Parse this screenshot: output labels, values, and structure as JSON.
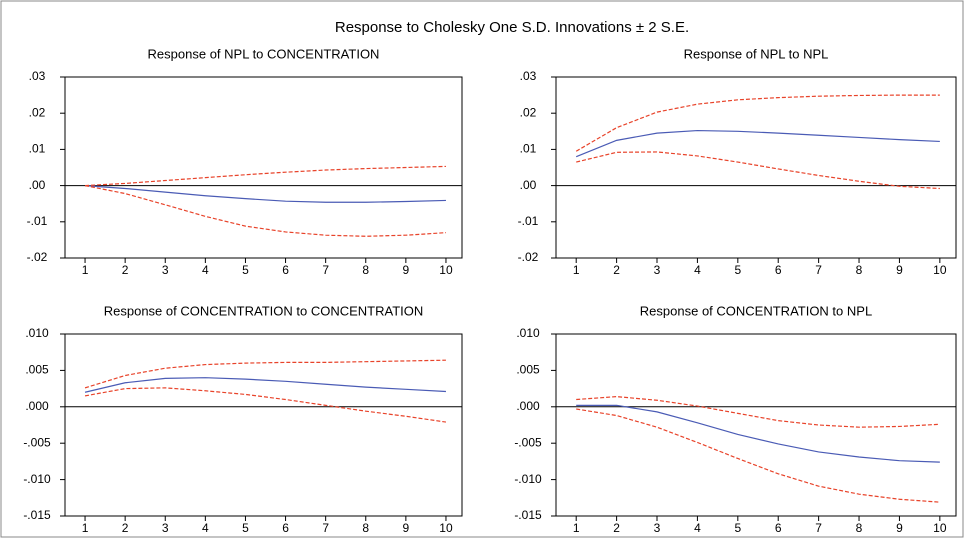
{
  "title": "Response to Cholesky One S.D. Innovations ± 2 S.E.",
  "chart_data": [
    {
      "type": "line",
      "title": "Response of NPL to CONCENTRATION",
      "x": [
        1,
        2,
        3,
        4,
        5,
        6,
        7,
        8,
        9,
        10
      ],
      "xlim": [
        0.5,
        10.4
      ],
      "xticks": [
        1,
        2,
        3,
        4,
        5,
        6,
        7,
        8,
        9,
        10
      ],
      "ylim": [
        -0.02,
        0.03
      ],
      "yticks": [
        {
          "value": -0.02,
          "label": "-.02"
        },
        {
          "value": -0.01,
          "label": "-.01"
        },
        {
          "value": 0,
          "label": ".00"
        },
        {
          "value": 0.01,
          "label": ".01"
        },
        {
          "value": 0.02,
          "label": ".02"
        },
        {
          "value": 0.03,
          "label": ".03"
        }
      ],
      "series": [
        {
          "color": "#4a5bb5",
          "dashed": false,
          "values": [
            0,
            -0.0008,
            -0.0018,
            -0.0028,
            -0.0036,
            -0.0043,
            -0.0046,
            -0.0046,
            -0.0044,
            -0.0041
          ]
        },
        {
          "color": "#e8432a",
          "dashed": true,
          "values": [
            0,
            0.0006,
            0.0014,
            0.0022,
            0.003,
            0.0037,
            0.0043,
            0.0047,
            0.005,
            0.0053
          ]
        },
        {
          "color": "#e8432a",
          "dashed": true,
          "values": [
            0,
            -0.0022,
            -0.0053,
            -0.0085,
            -0.0112,
            -0.0128,
            -0.0137,
            -0.014,
            -0.0137,
            -0.013
          ]
        }
      ]
    },
    {
      "type": "line",
      "title": "Response of NPL to NPL",
      "x": [
        1,
        2,
        3,
        4,
        5,
        6,
        7,
        8,
        9,
        10
      ],
      "xlim": [
        0.5,
        10.4
      ],
      "xticks": [
        1,
        2,
        3,
        4,
        5,
        6,
        7,
        8,
        9,
        10
      ],
      "ylim": [
        -0.02,
        0.03
      ],
      "yticks": [
        {
          "value": -0.02,
          "label": "-.02"
        },
        {
          "value": -0.01,
          "label": "-.01"
        },
        {
          "value": 0,
          "label": ".00"
        },
        {
          "value": 0.01,
          "label": ".01"
        },
        {
          "value": 0.02,
          "label": ".02"
        },
        {
          "value": 0.03,
          "label": ".03"
        }
      ],
      "series": [
        {
          "color": "#4a5bb5",
          "dashed": false,
          "values": [
            0.008,
            0.0125,
            0.0145,
            0.0152,
            0.015,
            0.0145,
            0.0139,
            0.0133,
            0.0127,
            0.0122
          ]
        },
        {
          "color": "#e8432a",
          "dashed": true,
          "values": [
            0.0095,
            0.016,
            0.0203,
            0.0225,
            0.0237,
            0.0243,
            0.0247,
            0.0249,
            0.025,
            0.025
          ]
        },
        {
          "color": "#e8432a",
          "dashed": true,
          "values": [
            0.0065,
            0.0092,
            0.0093,
            0.0082,
            0.0065,
            0.0046,
            0.0028,
            0.0012,
            -0.0002,
            -0.0008
          ]
        }
      ]
    },
    {
      "type": "line",
      "title": "Response of CONCENTRATION to CONCENTRATION",
      "x": [
        1,
        2,
        3,
        4,
        5,
        6,
        7,
        8,
        9,
        10
      ],
      "xlim": [
        0.5,
        10.4
      ],
      "xticks": [
        1,
        2,
        3,
        4,
        5,
        6,
        7,
        8,
        9,
        10
      ],
      "ylim": [
        -0.015,
        0.01
      ],
      "yticks": [
        {
          "value": -0.015,
          "label": "-.015"
        },
        {
          "value": -0.01,
          "label": "-.010"
        },
        {
          "value": -0.005,
          "label": "-.005"
        },
        {
          "value": 0,
          "label": ".000"
        },
        {
          "value": 0.005,
          "label": ".005"
        },
        {
          "value": 0.01,
          "label": ".010"
        }
      ],
      "series": [
        {
          "color": "#4a5bb5",
          "dashed": false,
          "values": [
            0.002,
            0.0033,
            0.0039,
            0.004,
            0.0038,
            0.0035,
            0.0031,
            0.0027,
            0.0024,
            0.0021
          ]
        },
        {
          "color": "#e8432a",
          "dashed": true,
          "values": [
            0.0026,
            0.0043,
            0.0053,
            0.0058,
            0.006,
            0.0061,
            0.0061,
            0.0062,
            0.0063,
            0.0064
          ]
        },
        {
          "color": "#e8432a",
          "dashed": true,
          "values": [
            0.0015,
            0.0025,
            0.0026,
            0.0022,
            0.0017,
            0.001,
            0.0002,
            -0.0006,
            -0.0013,
            -0.0021
          ]
        }
      ]
    },
    {
      "type": "line",
      "title": "Response of CONCENTRATION to NPL",
      "x": [
        1,
        2,
        3,
        4,
        5,
        6,
        7,
        8,
        9,
        10
      ],
      "xlim": [
        0.5,
        10.4
      ],
      "xticks": [
        1,
        2,
        3,
        4,
        5,
        6,
        7,
        8,
        9,
        10
      ],
      "ylim": [
        -0.015,
        0.01
      ],
      "yticks": [
        {
          "value": -0.015,
          "label": "-.015"
        },
        {
          "value": -0.01,
          "label": "-.010"
        },
        {
          "value": -0.005,
          "label": "-.005"
        },
        {
          "value": 0,
          "label": ".000"
        },
        {
          "value": 0.005,
          "label": ".005"
        },
        {
          "value": 0.01,
          "label": ".010"
        }
      ],
      "series": [
        {
          "color": "#4a5bb5",
          "dashed": false,
          "values": [
            0.0002,
            0.0002,
            -0.0007,
            -0.0022,
            -0.0038,
            -0.0051,
            -0.0062,
            -0.0069,
            -0.0074,
            -0.0076
          ]
        },
        {
          "color": "#e8432a",
          "dashed": true,
          "values": [
            0.001,
            0.0014,
            0.0009,
            0.0001,
            -0.0009,
            -0.0019,
            -0.0025,
            -0.0028,
            -0.0027,
            -0.0024
          ]
        },
        {
          "color": "#e8432a",
          "dashed": true,
          "values": [
            -0.0003,
            -0.0012,
            -0.0028,
            -0.0049,
            -0.0071,
            -0.0092,
            -0.0109,
            -0.012,
            -0.0127,
            -0.0131
          ]
        }
      ]
    }
  ]
}
